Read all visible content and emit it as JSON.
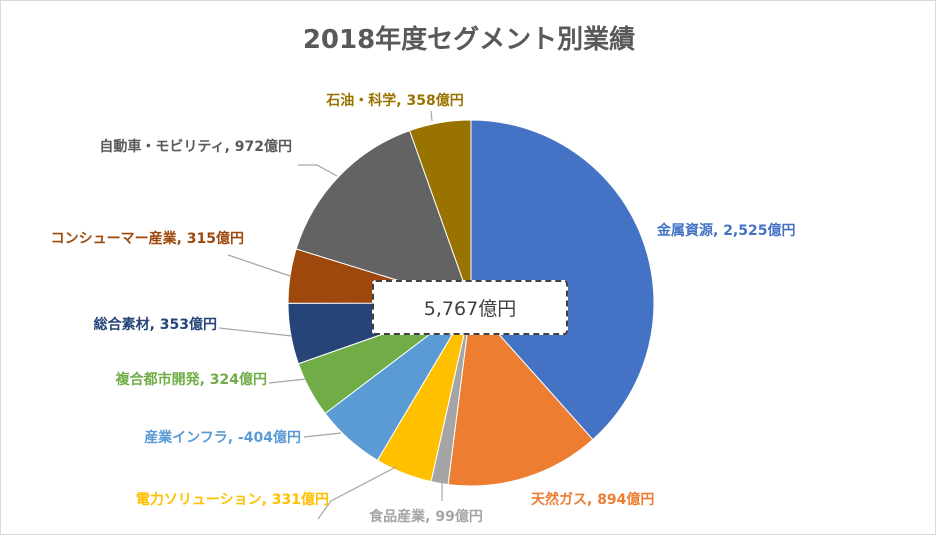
{
  "chart_data": {
    "type": "pie",
    "title": "2018年度セグメント別業績",
    "center_label": "5,767億円",
    "unit": "億円",
    "start_angle_deg": 0,
    "direction": "clockwise",
    "slices": [
      {
        "name": "金属資源",
        "value": 2525,
        "label": "金属資源, 2,525億円",
        "color": "#4472C4",
        "label_color": "#4472C4"
      },
      {
        "name": "天然ガス",
        "value": 894,
        "label": "天然ガス, 894億円",
        "color": "#ED7D31",
        "label_color": "#ED7D31"
      },
      {
        "name": "食品産業",
        "value": 99,
        "label": "食品産業, 99億円",
        "color": "#A5A5A5",
        "label_color": "#A5A5A5"
      },
      {
        "name": "電力ソリューション",
        "value": 331,
        "label": "電力ソリューション, 331億円",
        "color": "#FFC000",
        "label_color": "#FFC000"
      },
      {
        "name": "産業インフラ",
        "value": -404,
        "label": "産業インフラ, -404億円",
        "color": "#5B9BD5",
        "label_color": "#5B9BD5"
      },
      {
        "name": "複合都市開発",
        "value": 324,
        "label": "複合都市開発, 324億円",
        "color": "#70AD47",
        "label_color": "#70AD47"
      },
      {
        "name": "総合素材",
        "value": 353,
        "label": "総合素材, 353億円",
        "color": "#264478",
        "label_color": "#264478"
      },
      {
        "name": "コンシューマー産業",
        "value": 315,
        "label": "コンシューマー産業, 315億円",
        "color": "#9E480E",
        "label_color": "#9E480E"
      },
      {
        "name": "自動車・モビリティ",
        "value": 972,
        "label": "自動車・モビリティ, 972億円",
        "color": "#636363",
        "label_color": "#595959"
      },
      {
        "name": "石油・科学",
        "value": 358,
        "label": "石油・科学, 358億円",
        "color": "#997300",
        "label_color": "#997300"
      }
    ]
  }
}
